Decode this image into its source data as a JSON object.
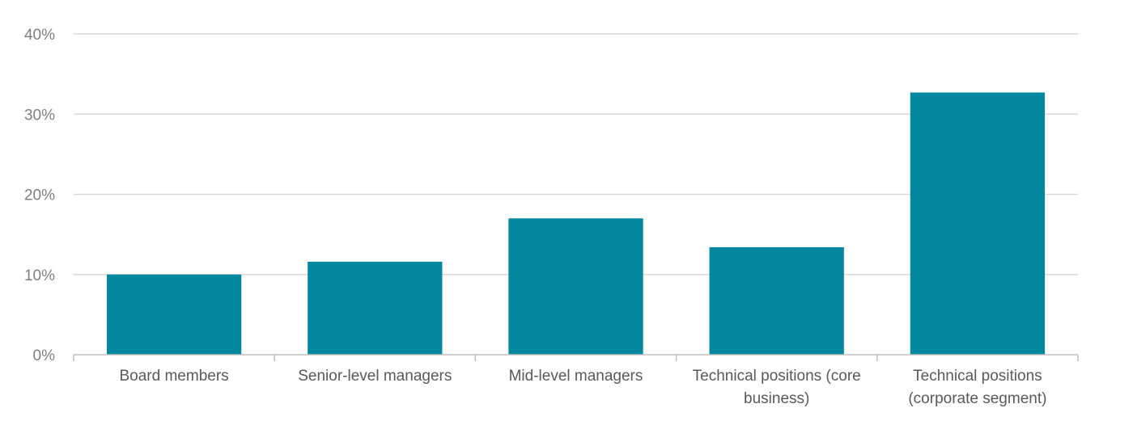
{
  "chart_data": {
    "type": "bar",
    "categories": [
      [
        "Board members"
      ],
      [
        "Senior-level managers"
      ],
      [
        "Mid-level managers"
      ],
      [
        "Technical positions (core",
        "business)"
      ],
      [
        "Technical positions",
        "(corporate segment)"
      ]
    ],
    "values": [
      10,
      11.6,
      17,
      13.4,
      32.7
    ],
    "ylim": [
      0,
      40
    ],
    "yticks": [
      0,
      10,
      20,
      30,
      40
    ],
    "ytick_labels": [
      "0%",
      "10%",
      "20%",
      "30%",
      "40%"
    ],
    "title": "",
    "xlabel": "",
    "ylabel": "",
    "grid": true,
    "legend": "none",
    "colors": {
      "bar": "#03889F",
      "grid": "#D9D9D9",
      "axis": "#BFBFBF",
      "tick_label": "#7F7F7F",
      "category_label": "#595959"
    }
  }
}
